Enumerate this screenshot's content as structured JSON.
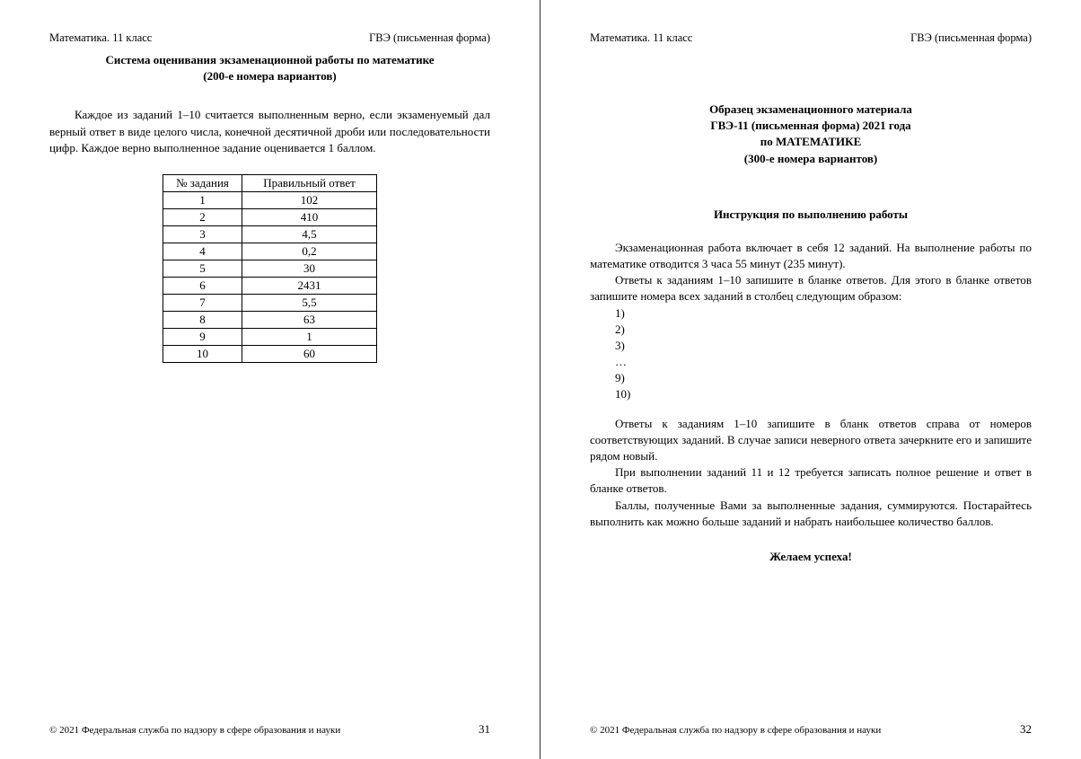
{
  "common": {
    "header_left": "Математика. 11 класс",
    "header_right": "ГВЭ (письменная форма)",
    "copyright": "© 2021 Федеральная служба по надзору в сфере образования и науки"
  },
  "left_page": {
    "title_l1": "Система оценивания экзаменационной работы по математике",
    "title_l2": "(200-е номера вариантов)",
    "para1": "Каждое из заданий 1–10 считается выполненным верно, если экзаменуемый дал верный ответ в виде целого числа, конечной десятичной дроби или последовательности цифр. Каждое верно выполненное задание оценивается 1 баллом.",
    "table": {
      "col1": "№ задания",
      "col2": "Правильный ответ",
      "rows": [
        {
          "n": "1",
          "a": "102"
        },
        {
          "n": "2",
          "a": "410"
        },
        {
          "n": "3",
          "a": "4,5"
        },
        {
          "n": "4",
          "a": "0,2"
        },
        {
          "n": "5",
          "a": "30"
        },
        {
          "n": "6",
          "a": "2431"
        },
        {
          "n": "7",
          "a": "5,5"
        },
        {
          "n": "8",
          "a": "63"
        },
        {
          "n": "9",
          "a": "1"
        },
        {
          "n": "10",
          "a": "60"
        }
      ]
    },
    "page_num": "31"
  },
  "right_page": {
    "title_l1": "Образец экзаменационного материала",
    "title_l2": "ГВЭ-11 (письменная форма) 2021 года",
    "title_l3": "по МАТЕМАТИКЕ",
    "title_l4": "(300-е номера вариантов)",
    "section_heading": "Инструкция по выполнению работы",
    "p1": "Экзаменационная работа включает в себя 12 заданий. На выполнение работы по математике отводится 3 часа 55 минут (235 минут).",
    "p2": "Ответы к заданиям 1–10 запишите в бланке ответов. Для этого в бланке ответов запишите номера всех заданий в столбец следующим образом:",
    "list": [
      "1)",
      "2)",
      "3)",
      "…",
      "9)",
      "10)"
    ],
    "p3": "Ответы к заданиям 1–10 запишите в бланк ответов справа от номеров соответствующих заданий. В случае записи неверного ответа зачеркните его и запишите рядом новый.",
    "p4": "При выполнении заданий 11 и 12 требуется записать полное решение и ответ в бланке ответов.",
    "p5": "Баллы, полученные Вами за выполненные задания, суммируются. Постарайтесь выполнить как можно больше заданий и набрать наибольшее количество баллов.",
    "wish": "Желаем успеха!",
    "page_num": "32"
  }
}
